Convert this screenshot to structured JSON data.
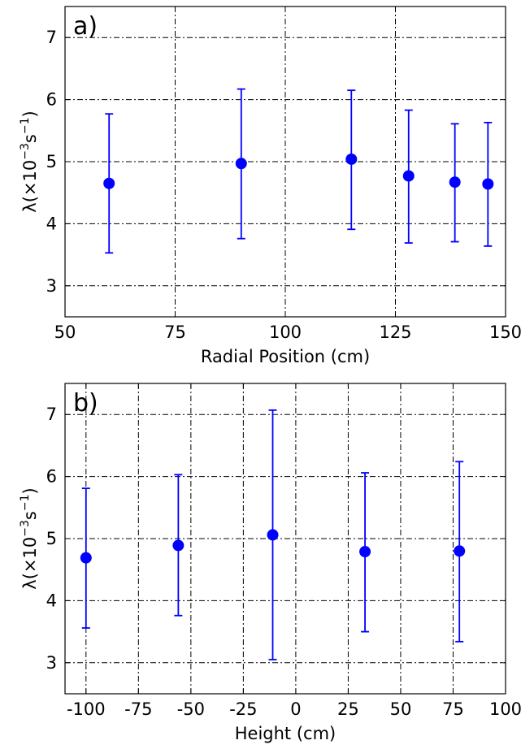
{
  "chart_data": [
    {
      "type": "scatter",
      "panel_label": "a)",
      "xlabel": "Radial Position (cm)",
      "ylabel_main": "λ(×10",
      "ylabel_exp1": "−3",
      "ylabel_mid": "s",
      "ylabel_exp2": "−1",
      "ylabel_end": ")",
      "xlim": [
        50,
        150
      ],
      "ylim": [
        2.5,
        7.5
      ],
      "xticks": [
        50,
        75,
        100,
        125,
        150
      ],
      "xtick_labels": [
        "50",
        "75",
        "100",
        "125",
        "150"
      ],
      "yticks": [
        3,
        4,
        5,
        6,
        7
      ],
      "ytick_labels": [
        "3",
        "4",
        "5",
        "6",
        "7"
      ],
      "grid": true,
      "color": "#0000ff",
      "points": [
        {
          "x": 60,
          "y": 4.65,
          "ylow": 3.53,
          "yhigh": 5.77
        },
        {
          "x": 90,
          "y": 4.97,
          "ylow": 3.76,
          "yhigh": 6.17
        },
        {
          "x": 115,
          "y": 5.04,
          "ylow": 3.91,
          "yhigh": 6.15
        },
        {
          "x": 128,
          "y": 4.77,
          "ylow": 3.69,
          "yhigh": 5.83
        },
        {
          "x": 138.5,
          "y": 4.67,
          "ylow": 3.71,
          "yhigh": 5.61
        },
        {
          "x": 146,
          "y": 4.64,
          "ylow": 3.64,
          "yhigh": 5.63
        }
      ]
    },
    {
      "type": "scatter",
      "panel_label": "b)",
      "xlabel": "Height (cm)",
      "ylabel_main": "λ(×10",
      "ylabel_exp1": "−3",
      "ylabel_mid": "s",
      "ylabel_exp2": "−1",
      "ylabel_end": ")",
      "xlim": [
        -110,
        100
      ],
      "ylim": [
        2.5,
        7.5
      ],
      "xticks": [
        -100,
        -75,
        -50,
        -25,
        0,
        25,
        50,
        75,
        100
      ],
      "xtick_labels": [
        "-100",
        "-75",
        "-50",
        "-25",
        "0",
        "25",
        "50",
        "75",
        "100"
      ],
      "yticks": [
        3,
        4,
        5,
        6,
        7
      ],
      "ytick_labels": [
        "3",
        "4",
        "5",
        "6",
        "7"
      ],
      "grid": true,
      "color": "#0000ff",
      "points": [
        {
          "x": -100,
          "y": 4.69,
          "ylow": 3.56,
          "yhigh": 5.81
        },
        {
          "x": -56,
          "y": 4.89,
          "ylow": 3.76,
          "yhigh": 6.03
        },
        {
          "x": -11,
          "y": 5.06,
          "ylow": 3.05,
          "yhigh": 7.07
        },
        {
          "x": 33,
          "y": 4.79,
          "ylow": 3.5,
          "yhigh": 6.06
        },
        {
          "x": 78,
          "y": 4.8,
          "ylow": 3.34,
          "yhigh": 6.24
        }
      ]
    }
  ]
}
